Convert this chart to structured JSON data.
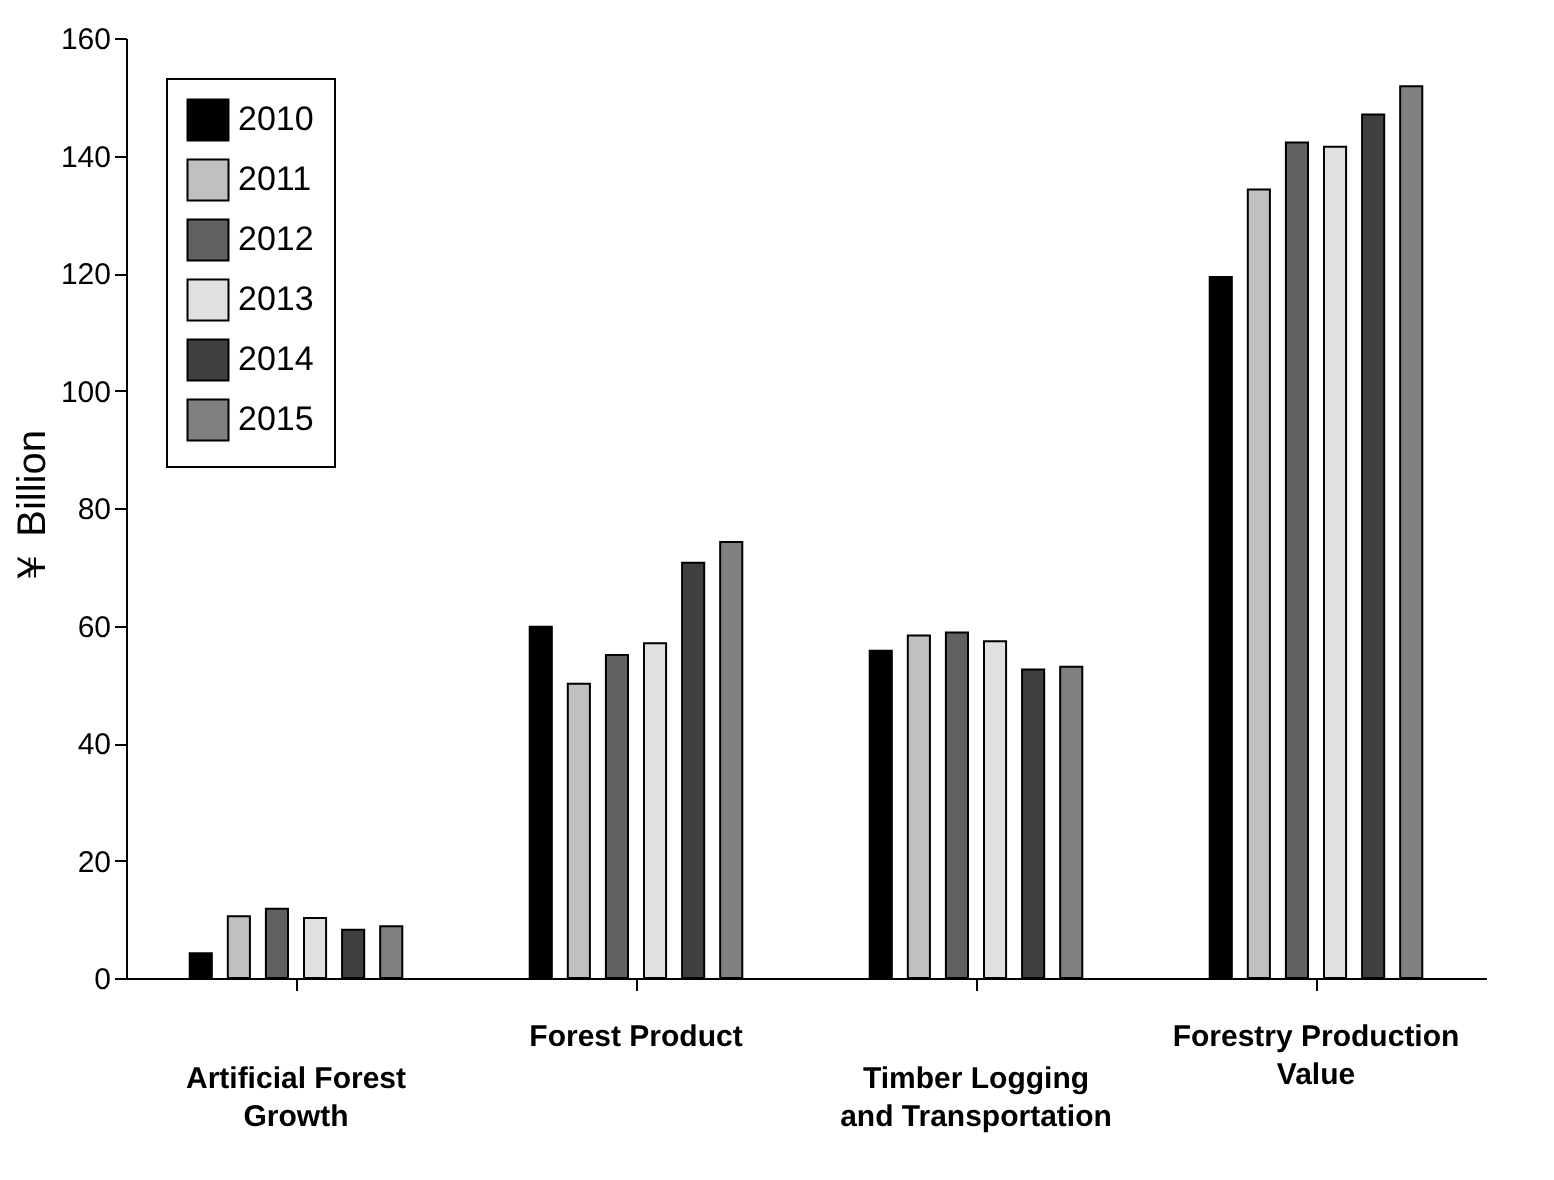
{
  "chart_data": {
    "type": "bar",
    "ylabel": "￥ Billion",
    "categories": [
      "Artificial Forest\nGrowth",
      "Forest Product",
      "Timber Logging\nand Transportation",
      "Forestry Production\nValue"
    ],
    "series": [
      {
        "name": "2010",
        "color": "#000000",
        "values": [
          4.2,
          59.8,
          55.7,
          119.3
        ]
      },
      {
        "name": "2011",
        "color": "#c0c0c0",
        "values": [
          10.5,
          50.1,
          58.3,
          134.2
        ]
      },
      {
        "name": "2012",
        "color": "#606060",
        "values": [
          11.8,
          55.0,
          58.8,
          142.2
        ]
      },
      {
        "name": "2013",
        "color": "#e0e0e0",
        "values": [
          10.2,
          57.0,
          57.3,
          141.5
        ]
      },
      {
        "name": "2014",
        "color": "#404040",
        "values": [
          8.2,
          70.7,
          52.5,
          147.0
        ]
      },
      {
        "name": "2015",
        "color": "#808080",
        "values": [
          8.8,
          74.2,
          53.0,
          151.8
        ]
      }
    ],
    "ylim": [
      0,
      160
    ],
    "yticks": [
      0,
      20,
      40,
      60,
      80,
      100,
      120,
      140,
      160
    ],
    "grid": false,
    "legend": "top left"
  }
}
